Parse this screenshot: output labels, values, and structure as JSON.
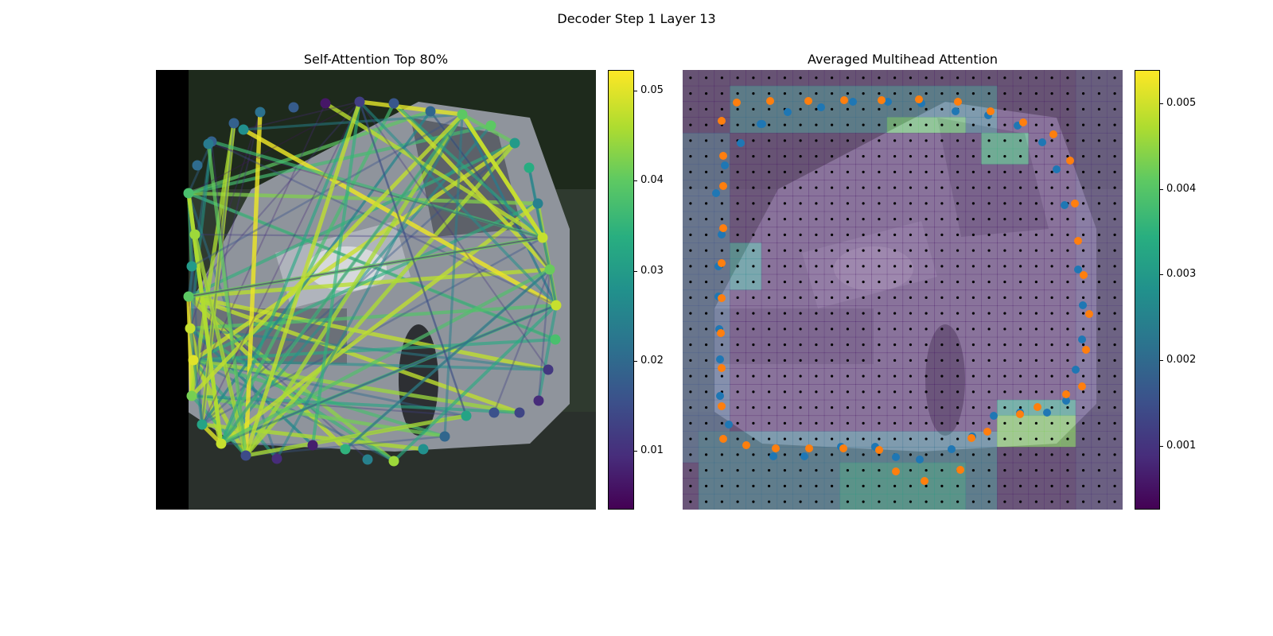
{
  "figure": {
    "suptitle": "Decoder Step 1 Layer 13"
  },
  "left_panel": {
    "title": "Self-Attention Top 80%",
    "colorbar_ticks": [
      "0.05",
      "0.04",
      "0.03",
      "0.02",
      "0.01"
    ]
  },
  "right_panel": {
    "title": "Averaged Multihead Attention",
    "colorbar_ticks": [
      "0.005",
      "0.004",
      "0.003",
      "0.002",
      "0.001"
    ]
  },
  "chart_data": [
    {
      "type": "scatter",
      "title": "Self-Attention Top 80%",
      "colormap": "viridis",
      "colorbar_range": [
        0.004,
        0.052
      ],
      "background": "photo of a silver van (overlay)",
      "nodes_value": [
        0.038,
        0.045,
        0.03,
        0.04,
        0.048,
        0.05,
        0.042,
        0.032,
        0.048,
        0.015,
        0.01,
        0.008,
        0.035,
        0.025,
        0.045,
        0.028,
        0.02,
        0.032,
        0.016,
        0.014,
        0.01,
        0.012,
        0.038,
        0.048,
        0.041,
        0.048,
        0.025,
        0.034,
        0.03,
        0.04,
        0.04,
        0.02,
        0.017,
        0.013,
        0.007,
        0.018,
        0.022,
        0.019,
        0.019,
        0.021,
        0.024,
        0.028
      ],
      "edges_value_range": [
        0.005,
        0.052
      ]
    },
    {
      "type": "heatmap",
      "title": "Averaged Multihead Attention",
      "colormap": "viridis",
      "colorbar_range": [
        0.0003,
        0.0054
      ],
      "grid": true,
      "series": [
        {
          "color": "#1f77b4"
        },
        {
          "color": "#ff7f0e"
        }
      ]
    }
  ]
}
